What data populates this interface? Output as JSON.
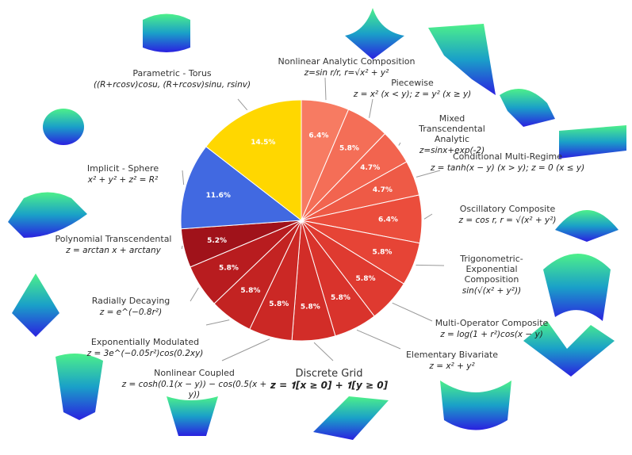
{
  "chart_data": {
    "type": "pie",
    "categories": [
      "Nonlinear Analytic Composition",
      "Piecewise",
      "Mixed Transcendental Analytic",
      "Conditional Multi-Regime",
      "Oscillatory Composite",
      "Trigonometric-Exponential Composition",
      "Multi-Operator Composite",
      "Elementary Bivariate",
      "Discrete Grid",
      "Nonlinear Coupled",
      "Exponentially Modulated",
      "Radially Decaying",
      "Polynomial Transcendental",
      "Implicit - Sphere",
      "Parametric - Torus"
    ],
    "formulas": [
      "z=sin r/r, r=√x² + y²",
      "z = x² (x < y);   z = y² (x ≥ y)",
      "z=sinx+exp(-2)",
      "z = tanh(x − y) (x > y);   z = 0 (x ≤ y)",
      "z = cos r,   r = √(x² + y²)",
      "sin(√(x² + y²))",
      "z = log(1 + r²)cos(x − y)",
      "z = x² + y²",
      "z = 𝟏[x ≥ 0] + 𝟏[y ≥ 0]",
      "z = cosh(0.1(x − y)) − cos(0.5(x + y))",
      "z = 3e^(−0.05r²)cos(0.2xy)",
      "z = e^(−0.8r²)",
      "z = arctan x + arctany",
      "x² + y² + z² = R²",
      "((R+rcosv)cosu, (R+rcosv)sinu, rsinv)"
    ],
    "values": [
      6.4,
      5.8,
      4.7,
      4.7,
      6.4,
      5.8,
      5.8,
      5.8,
      5.8,
      5.8,
      5.8,
      5.8,
      5.2,
      11.6,
      14.5
    ],
    "value_labels": [
      "6.4%",
      "5.8%",
      "4.7%",
      "4.7%",
      "6.4%",
      "5.8%",
      "5.8%",
      "5.8%",
      "5.8%",
      "5.8%",
      "5.8%",
      "5.8%",
      "5.2%",
      "11.6%",
      "14.5%"
    ],
    "colors": [
      "#f77b62",
      "#f46e57",
      "#f2644f",
      "#ee5a46",
      "#eb4d3c",
      "#e64436",
      "#df3a30",
      "#d9332c",
      "#d22d28",
      "#cb2825",
      "#c32322",
      "#b81c1f",
      "#a0121a",
      "#4169e1",
      "#ffd700"
    ]
  }
}
